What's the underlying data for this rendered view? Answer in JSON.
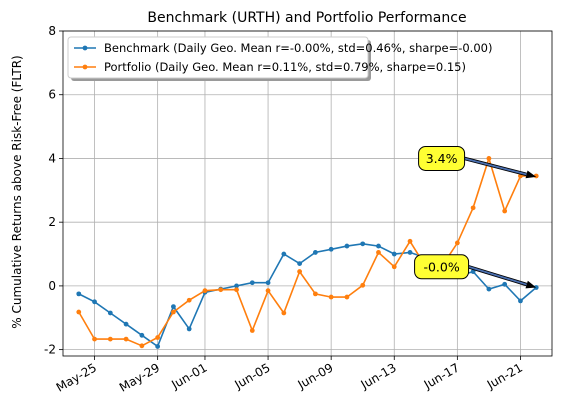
{
  "chart_data": {
    "type": "line",
    "title": "Benchmark (URTH) and Portfolio Performance",
    "xlabel": "",
    "ylabel": "% Cumulative Returns above Risk-Free (FLTR)",
    "ylim": [
      -2.2,
      8
    ],
    "yticks": [
      -2,
      0,
      2,
      4,
      6,
      8
    ],
    "xlim": [
      "2022-05-23",
      "2022-06-23"
    ],
    "xticks": [
      "2022-05-25",
      "2022-05-29",
      "2022-06-01",
      "2022-06-05",
      "2022-06-09",
      "2022-06-13",
      "2022-06-17",
      "2022-06-21"
    ],
    "xtick_labels": [
      "May-25",
      "May-29",
      "Jun-01",
      "Jun-05",
      "Jun-09",
      "Jun-13",
      "Jun-17",
      "Jun-21"
    ],
    "grid": true,
    "legend_position": "upper-left",
    "x": [
      "2022-05-24",
      "2022-05-25",
      "2022-05-26",
      "2022-05-27",
      "2022-05-28",
      "2022-05-29",
      "2022-05-30",
      "2022-05-31",
      "2022-06-01",
      "2022-06-02",
      "2022-06-03",
      "2022-06-04",
      "2022-06-05",
      "2022-06-06",
      "2022-06-07",
      "2022-06-08",
      "2022-06-09",
      "2022-06-10",
      "2022-06-11",
      "2022-06-12",
      "2022-06-13",
      "2022-06-14",
      "2022-06-15",
      "2022-06-16",
      "2022-06-17",
      "2022-06-18",
      "2022-06-19",
      "2022-06-20",
      "2022-06-21",
      "2022-06-22"
    ],
    "series": [
      {
        "name": "Benchmark (Daily Geo. Mean r=-0.00%, std=0.46%, sharpe=-0.00)",
        "color": "#1f77b4",
        "values": [
          -0.25,
          -0.5,
          -0.85,
          -1.2,
          -1.55,
          -1.9,
          -0.65,
          -1.35,
          -0.2,
          -0.1,
          0.0,
          0.1,
          0.1,
          1.0,
          0.7,
          1.05,
          1.15,
          1.25,
          1.32,
          1.25,
          1.0,
          1.05,
          0.88,
          0.82,
          0.3,
          0.45,
          -0.1,
          0.05,
          -0.47,
          -0.05
        ]
      },
      {
        "name": "Portfolio (Daily Geo. Mean r=0.11%, std=0.79%, sharpe=0.15)",
        "color": "#ff7f0e",
        "values": [
          -0.82,
          -1.67,
          -1.67,
          -1.67,
          -1.88,
          -1.62,
          -0.82,
          -0.45,
          -0.15,
          -0.12,
          -0.12,
          -1.4,
          -0.15,
          -0.85,
          0.45,
          -0.25,
          -0.35,
          -0.35,
          0.02,
          1.05,
          0.6,
          1.4,
          0.6,
          0.6,
          1.35,
          2.45,
          4.0,
          2.35,
          3.45,
          3.45
        ]
      }
    ],
    "annotations": [
      {
        "text": "3.4%",
        "target_x": "2022-06-22",
        "target_y": 3.42,
        "text_x": "2022-06-16",
        "text_y": 4.0,
        "box_color": "#ffff33"
      },
      {
        "text": "-0.0%",
        "target_x": "2022-06-22",
        "target_y": -0.05,
        "text_x": "2022-06-16",
        "text_y": 0.6,
        "box_color": "#ffff33"
      }
    ]
  }
}
